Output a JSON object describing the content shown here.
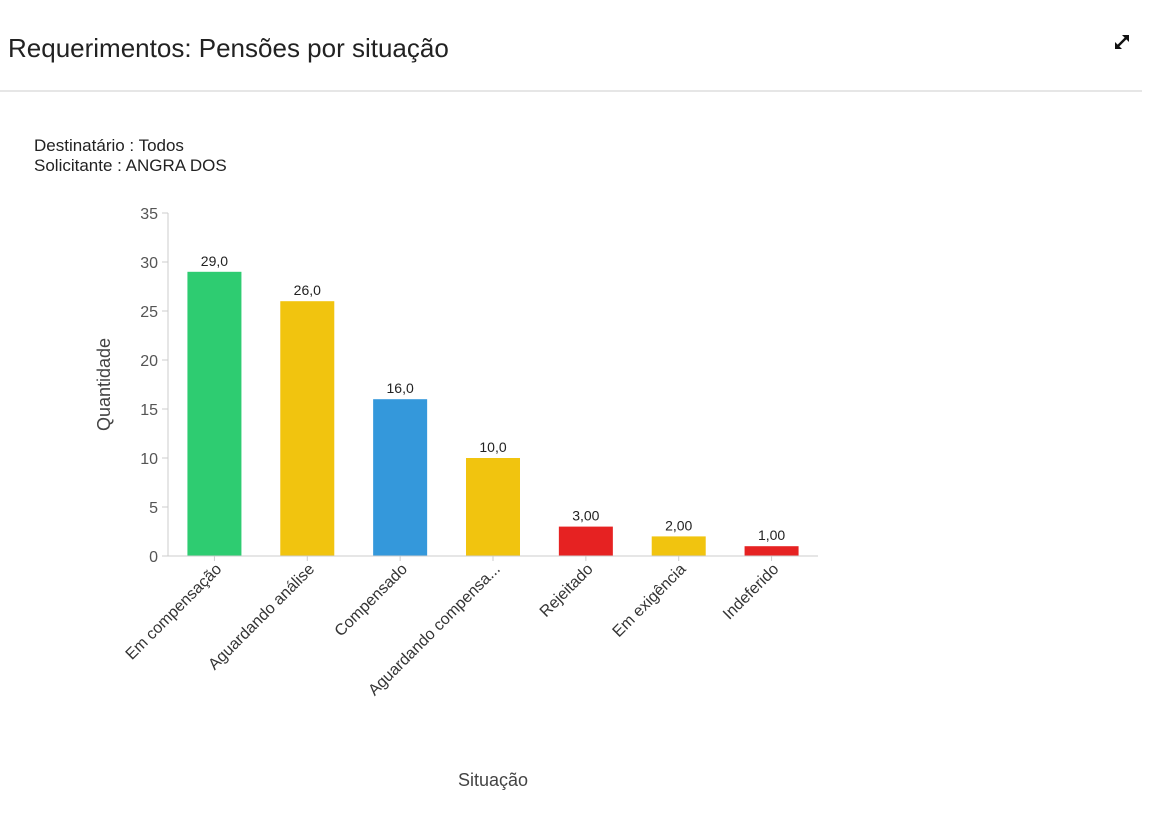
{
  "panel": {
    "title": "Requerimentos: Pensões por situação",
    "expand_icon": "expand-arrows-icon"
  },
  "filters": {
    "destinatario": "Destinatário : Todos",
    "solicitante": "Solicitante : ANGRA DOS"
  },
  "chart_data": {
    "type": "bar",
    "title": "",
    "xlabel": "Situação",
    "ylabel": "Quantidade",
    "ylim": [
      0,
      35
    ],
    "yticks": [
      0,
      5,
      10,
      15,
      20,
      25,
      30,
      35
    ],
    "yticks_text": [
      "0",
      "5",
      "10",
      "15",
      "20",
      "25",
      "30",
      "35"
    ],
    "grid": false,
    "legend": "none",
    "categories": [
      "Em compensação",
      "Aguardando análise",
      "Compensado",
      "Aguardando compensa...",
      "Rejeitado",
      "Em exigência",
      "Indeferido"
    ],
    "values": [
      29,
      26,
      16,
      10,
      3,
      2,
      1
    ],
    "value_labels": [
      "29,0",
      "26,0",
      "16,0",
      "10,0",
      "3,00",
      "2,00",
      "1,00"
    ],
    "colors": [
      "#2ecc71",
      "#f1c40f",
      "#3498db",
      "#f1c40f",
      "#e62222",
      "#f1c40f",
      "#e62222"
    ]
  }
}
